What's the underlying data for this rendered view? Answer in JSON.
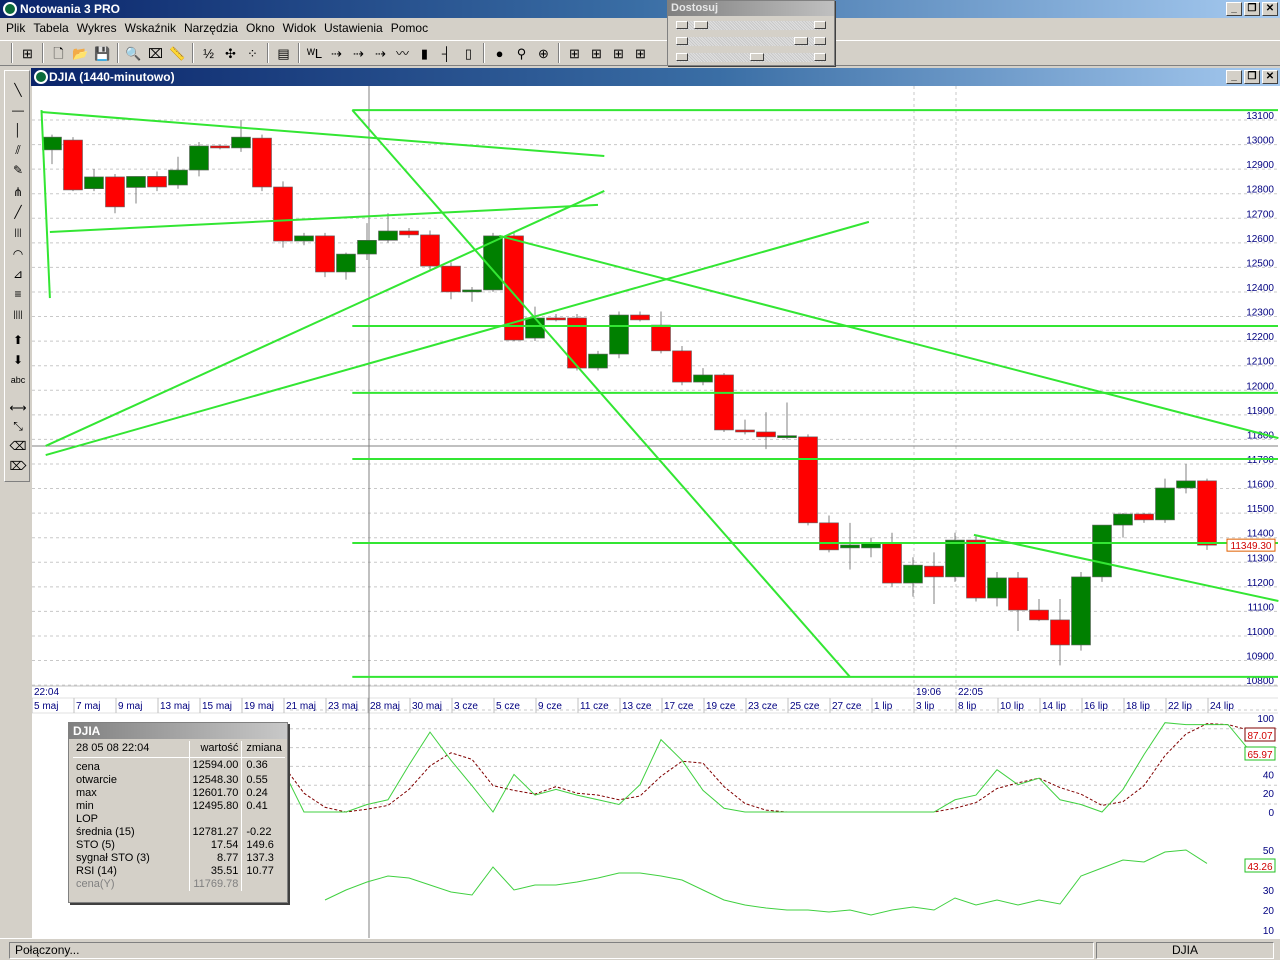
{
  "app": {
    "title": "Notowania 3 PRO"
  },
  "menu": [
    "Plik",
    "Tabela",
    "Wykres",
    "Wskaźnik",
    "Narzędzia",
    "Okno",
    "Widok",
    "Ustawienia",
    "Pomoc"
  ],
  "toolbar": [
    {
      "icon": "layout-grid-icon",
      "glyph": "⊞"
    },
    {
      "sep": true
    },
    {
      "icon": "new-file-icon",
      "glyph": "🗋"
    },
    {
      "icon": "open-folder-icon",
      "glyph": "📂"
    },
    {
      "icon": "save-icon",
      "glyph": "💾"
    },
    {
      "sep": true
    },
    {
      "icon": "zoom-icon",
      "glyph": "🔍"
    },
    {
      "icon": "remove-zoom-icon",
      "glyph": "⌧"
    },
    {
      "icon": "ruler-icon",
      "glyph": "📏"
    },
    {
      "sep": true
    },
    {
      "icon": "numbers-icon",
      "glyph": "½"
    },
    {
      "icon": "crosshair-icon",
      "glyph": "✣"
    },
    {
      "icon": "dots-icon",
      "glyph": "⁘"
    },
    {
      "sep": true
    },
    {
      "icon": "data-window-icon",
      "glyph": "▤"
    },
    {
      "sep": true
    },
    {
      "icon": "wl-icon",
      "glyph": "ᵂL"
    },
    {
      "icon": "arrow-right-red-icon",
      "glyph": "⇢"
    },
    {
      "icon": "arrow-right-blue-icon",
      "glyph": "⇢"
    },
    {
      "icon": "arrow-dash-icon",
      "glyph": "⇢"
    },
    {
      "icon": "line-chart-icon",
      "glyph": "〰"
    },
    {
      "icon": "bar-chart-icon",
      "glyph": "▮"
    },
    {
      "icon": "ohlc-chart-icon",
      "glyph": "┤"
    },
    {
      "icon": "candle-chart-icon",
      "glyph": "▯"
    },
    {
      "sep": true
    },
    {
      "icon": "traffic-light-icon",
      "glyph": "●"
    },
    {
      "icon": "add-alert-icon",
      "glyph": "⚲"
    },
    {
      "icon": "add-indicator-icon",
      "glyph": "⊕"
    },
    {
      "sep": true
    },
    {
      "icon": "layout-1-icon",
      "glyph": "⊞"
    },
    {
      "icon": "layout-2-icon",
      "glyph": "⊞"
    },
    {
      "icon": "layout-3-icon",
      "glyph": "⊞"
    },
    {
      "icon": "layout-4-icon",
      "glyph": "⊞"
    }
  ],
  "adjust_panel": {
    "title": "Dostosuj",
    "sliders": [
      0.05,
      0.95,
      0.55
    ]
  },
  "left_tools": [
    {
      "icon": "diagonal-line-icon",
      "glyph": "╲"
    },
    {
      "icon": "horizontal-line-icon",
      "glyph": "—"
    },
    {
      "icon": "vertical-line-icon",
      "glyph": "│"
    },
    {
      "icon": "channel-icon",
      "glyph": "⫽"
    },
    {
      "icon": "pencil-icon",
      "glyph": "✎"
    },
    {
      "icon": "fan-icon",
      "glyph": "⋔"
    },
    {
      "icon": "ray-icon",
      "glyph": "╱"
    },
    {
      "icon": "vertical-lines-icon",
      "glyph": "|||"
    },
    {
      "icon": "arcs-icon",
      "glyph": "◠"
    },
    {
      "icon": "fibonacci-fan-icon",
      "glyph": "⊿"
    },
    {
      "icon": "fibonacci-levels-icon",
      "glyph": "≡"
    },
    {
      "icon": "time-zones-icon",
      "glyph": "||||"
    },
    {
      "icon": "arrow-up-icon",
      "glyph": "⬆"
    },
    {
      "icon": "arrow-down-icon",
      "glyph": "⬇"
    },
    {
      "icon": "text-icon",
      "glyph": "abc"
    },
    {
      "icon": "resize-horizontal-icon",
      "glyph": "⟷"
    },
    {
      "icon": "resize-diagonal-icon",
      "glyph": "⤡"
    },
    {
      "icon": "eraser-icon",
      "glyph": "⌫"
    },
    {
      "icon": "eraser-all-icon",
      "glyph": "⌦"
    }
  ],
  "chart_window": {
    "title": "DJIA (1440-minutowo)"
  },
  "colors": {
    "up": "#008000",
    "down": "#ff0000",
    "trendline": "#33e633",
    "axis_text": "#000080",
    "stoch_signal": "#800000"
  },
  "chart_data": [
    {
      "type": "candlestick",
      "symbol": "DJIA",
      "ylim": [
        10780,
        13140
      ],
      "yticks": [
        13100,
        13000,
        12900,
        12800,
        12700,
        12600,
        12500,
        12400,
        12300,
        12200,
        12100,
        12000,
        11900,
        11800,
        11700,
        11600,
        11500,
        11400,
        11300,
        11200,
        11100,
        11000,
        10900,
        10800
      ],
      "grid": true,
      "last_price_label": "11349.30",
      "time_labels": [
        {
          "text": "22:04",
          "candle": 0
        },
        {
          "text": "19:06",
          "candle": 42
        },
        {
          "text": "22:05",
          "candle": 44
        }
      ],
      "xtick_labels": [
        "5 maj",
        "7 maj",
        "9 maj",
        "13 maj",
        "15 maj",
        "19 maj",
        "21 maj",
        "23 maj",
        "28 maj",
        "30 maj",
        "3 cze",
        "5 cze",
        "9 cze",
        "11 cze",
        "13 cze",
        "17 cze",
        "19 cze",
        "23 cze",
        "25 cze",
        "27 cze",
        "1 lip",
        "3 lip",
        "8 lip",
        "10 lip",
        "14 lip",
        "16 lip",
        "18 lip",
        "22 lip",
        "24 lip"
      ],
      "ohlc": [
        [
          12958,
          13020,
          12900,
          13010
        ],
        [
          12998,
          13010,
          12790,
          12795
        ],
        [
          12800,
          12880,
          12790,
          12848
        ],
        [
          12848,
          12860,
          12700,
          12726
        ],
        [
          12805,
          12850,
          12740,
          12850
        ],
        [
          12850,
          12870,
          12790,
          12807
        ],
        [
          12815,
          12930,
          12800,
          12876
        ],
        [
          12876,
          12990,
          12850,
          12974
        ],
        [
          12974,
          12980,
          12960,
          12966
        ],
        [
          12966,
          13080,
          12950,
          13010
        ],
        [
          13006,
          13020,
          12790,
          12807
        ],
        [
          12807,
          12830,
          12560,
          12587
        ],
        [
          12587,
          12620,
          12570,
          12608
        ],
        [
          12608,
          12620,
          12440,
          12461
        ],
        [
          12461,
          12540,
          12430,
          12534
        ],
        [
          12534,
          12660,
          12510,
          12590
        ],
        [
          12590,
          12700,
          12580,
          12628
        ],
        [
          12628,
          12640,
          12600,
          12612
        ],
        [
          12612,
          12630,
          12470,
          12485
        ],
        [
          12485,
          12500,
          12350,
          12380
        ],
        [
          12380,
          12400,
          12340,
          12388
        ],
        [
          12388,
          12620,
          12380,
          12608
        ],
        [
          12608,
          12620,
          12180,
          12184
        ],
        [
          12192,
          12320,
          12180,
          12274
        ],
        [
          12274,
          12290,
          12260,
          12266
        ],
        [
          12274,
          12290,
          12060,
          12070
        ],
        [
          12070,
          12140,
          12060,
          12127
        ],
        [
          12127,
          12300,
          12110,
          12286
        ],
        [
          12286,
          12300,
          12260,
          12266
        ],
        [
          12245,
          12300,
          12130,
          12140
        ],
        [
          12140,
          12160,
          12000,
          12013
        ],
        [
          12013,
          12070,
          12000,
          12042
        ],
        [
          12042,
          12050,
          11810,
          11818
        ],
        [
          11818,
          11860,
          11800,
          11810
        ],
        [
          11810,
          11890,
          11740,
          11790
        ],
        [
          11790,
          11930,
          11780,
          11795
        ],
        [
          11790,
          11800,
          11430,
          11440
        ],
        [
          11440,
          11470,
          11320,
          11330
        ],
        [
          11338,
          11440,
          11250,
          11350
        ],
        [
          11338,
          11380,
          11300,
          11358
        ],
        [
          11358,
          11400,
          11180,
          11195
        ],
        [
          11195,
          11300,
          11140,
          11268
        ],
        [
          11264,
          11320,
          11110,
          11220
        ],
        [
          11220,
          11400,
          11200,
          11370
        ],
        [
          11370,
          11390,
          11120,
          11134
        ],
        [
          11134,
          11240,
          11100,
          11216
        ],
        [
          11216,
          11240,
          11000,
          11085
        ],
        [
          11085,
          11130,
          11040,
          11045
        ],
        [
          11045,
          11130,
          10860,
          10943
        ],
        [
          10943,
          11240,
          10920,
          11220
        ],
        [
          11220,
          11431,
          11200,
          11431
        ],
        [
          11431,
          11480,
          11380,
          11476
        ],
        [
          11476,
          11480,
          11440,
          11452
        ],
        [
          11452,
          11620,
          11440,
          11582
        ],
        [
          11582,
          11680,
          11560,
          11611
        ],
        [
          11611,
          11620,
          11330,
          11349.3
        ]
      ],
      "trendlines": [
        {
          "from": [
            -0.5,
            13120
          ],
          "to": [
            -0.1,
            12355
          ]
        },
        {
          "from": [
            -0.5,
            13112
          ],
          "to": [
            26.3,
            12933
          ]
        },
        {
          "from": [
            -0.1,
            12624
          ],
          "to": [
            26.0,
            12734
          ]
        },
        {
          "from": [
            -0.3,
            11753
          ],
          "to": [
            26.3,
            12791
          ]
        },
        {
          "from": [
            -0.3,
            11716
          ],
          "to": [
            38.9,
            12665
          ]
        },
        {
          "from": [
            14.3,
            13120
          ],
          "to": [
            38.0,
            10813
          ]
        },
        {
          "from": [
            21.3,
            12608
          ],
          "to": [
            58.4,
            11785
          ]
        },
        {
          "from": [
            43.9,
            11391
          ],
          "to": [
            58.4,
            11122
          ]
        }
      ],
      "horizontal_lines": {
        "from_candle": 14.3,
        "levels": [
          13120,
          12241,
          11969,
          11700,
          11358,
          10813
        ]
      }
    },
    {
      "type": "line",
      "indicator": "STO (5) / sygnał STO (3)",
      "ylim": [
        0,
        100
      ],
      "yticks_shown": [
        "100",
        "40",
        "20",
        "0"
      ],
      "start_candle": 11,
      "series": [
        {
          "name": "STO (5)",
          "values": [
            45,
            0,
            0,
            0,
            8,
            13,
            50,
            85,
            55,
            28,
            0,
            40,
            18,
            24,
            18,
            13,
            8,
            29,
            77,
            55,
            23,
            4,
            0,
            0,
            0,
            0,
            0,
            0,
            0,
            0,
            0,
            0,
            13,
            18,
            45,
            29,
            36,
            13,
            8,
            0,
            24,
            61,
            95,
            93,
            93,
            93,
            65.97
          ],
          "label": "65.97"
        },
        {
          "name": "sygnał STO (3)",
          "values": [
            50,
            20,
            5,
            0,
            3,
            7,
            24,
            49,
            63,
            56,
            28,
            23,
            19,
            27,
            20,
            18,
            13,
            17,
            38,
            54,
            52,
            27,
            9,
            2,
            0,
            0,
            0,
            0,
            0,
            0,
            0,
            0,
            4,
            10,
            25,
            31,
            36,
            26,
            19,
            7,
            11,
            28,
            60,
            83,
            94,
            93,
            87.07
          ],
          "label": "87.07"
        }
      ]
    },
    {
      "type": "line",
      "indicator": "RSI (14)",
      "ylim": [
        10,
        55
      ],
      "yticks_shown": [
        "50",
        "30",
        "20",
        "10"
      ],
      "start_candle": 13,
      "series": [
        {
          "name": "RSI (14)",
          "values": [
            25,
            30,
            34,
            37,
            36,
            32.5,
            29,
            27.5,
            41.5,
            30,
            32.5,
            32.5,
            34,
            36,
            38.5,
            38.5,
            37,
            35,
            30,
            25,
            22.5,
            21,
            20,
            20,
            19,
            20,
            17.5,
            20,
            21.5,
            20,
            26,
            22.5,
            25,
            22.5,
            25,
            23,
            37,
            41,
            45,
            44,
            49,
            50,
            43.26
          ],
          "label": "43.26"
        }
      ]
    }
  ],
  "info_box": {
    "title": "DJIA",
    "datetime": "28 05 08 22:04",
    "col_value": "wartość",
    "col_change": "zmiana",
    "rows": [
      {
        "label": "cena",
        "value": "12594.00",
        "change": "0.36"
      },
      {
        "label": "otwarcie",
        "value": "12548.30",
        "change": "0.55"
      },
      {
        "label": "max",
        "value": "12601.70",
        "change": "0.24"
      },
      {
        "label": "min",
        "value": "12495.80",
        "change": "0.41"
      },
      {
        "label": "LOP",
        "value": "",
        "change": ""
      },
      {
        "label": "średnia (15)",
        "value": "12781.27",
        "change": "-0.22"
      },
      {
        "label": "STO (5)",
        "value": "17.54",
        "change": "149.6"
      },
      {
        "label": "sygnał STO (3)",
        "value": "8.77",
        "change": "137.3"
      },
      {
        "label": "RSI (14)",
        "value": "35.51",
        "change": "10.77"
      },
      {
        "label": "cena(Y)",
        "value": "11769.78",
        "change": "",
        "dim": true
      }
    ]
  },
  "status": {
    "left": "Połączony...",
    "right": "DJIA"
  }
}
